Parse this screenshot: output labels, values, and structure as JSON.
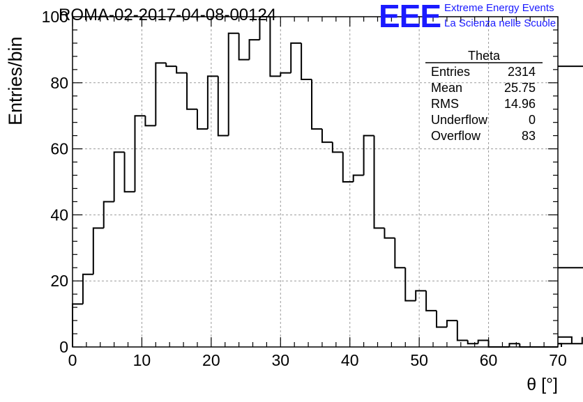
{
  "header": {
    "run_title": "ROMA-02-2017-04-08-00124",
    "logo_text": "EEE",
    "logo_line1": "Extreme Energy Events",
    "logo_line2": "La Scienza nelle Scuole",
    "logo_color": "#1a1aff"
  },
  "chart_data": {
    "type": "histogram",
    "xlabel": "θ [°]",
    "ylabel": "Entries/bin",
    "xlim": [
      0,
      70
    ],
    "ylim": [
      0,
      100
    ],
    "grid": true,
    "bin_width": 1.5,
    "bin_edges_start": 0,
    "x_ticks": [
      "0",
      "10",
      "20",
      "30",
      "40",
      "50",
      "60",
      "70"
    ],
    "y_ticks": [
      "0",
      "20",
      "40",
      "60",
      "80",
      "100"
    ],
    "counts": [
      13,
      22,
      36,
      44,
      59,
      47,
      70,
      67,
      86,
      85,
      83,
      72,
      66,
      82,
      64,
      95,
      87,
      93,
      100,
      82,
      83,
      92,
      81,
      66,
      62,
      59,
      50,
      52,
      64,
      36,
      33,
      24,
      14,
      17,
      11,
      6,
      8,
      2,
      1,
      2,
      0,
      0,
      1,
      0,
      0,
      0,
      0,
      1,
      3,
      1,
      85,
      24
    ],
    "line_color": "#000000",
    "stats_box": {
      "title": "Theta",
      "rows": [
        {
          "label": "Entries",
          "value": "2314"
        },
        {
          "label": "Mean",
          "value": "25.75"
        },
        {
          "label": "RMS",
          "value": "14.96"
        },
        {
          "label": "Underflow",
          "value": "0"
        },
        {
          "label": "Overflow",
          "value": "83"
        }
      ]
    }
  }
}
